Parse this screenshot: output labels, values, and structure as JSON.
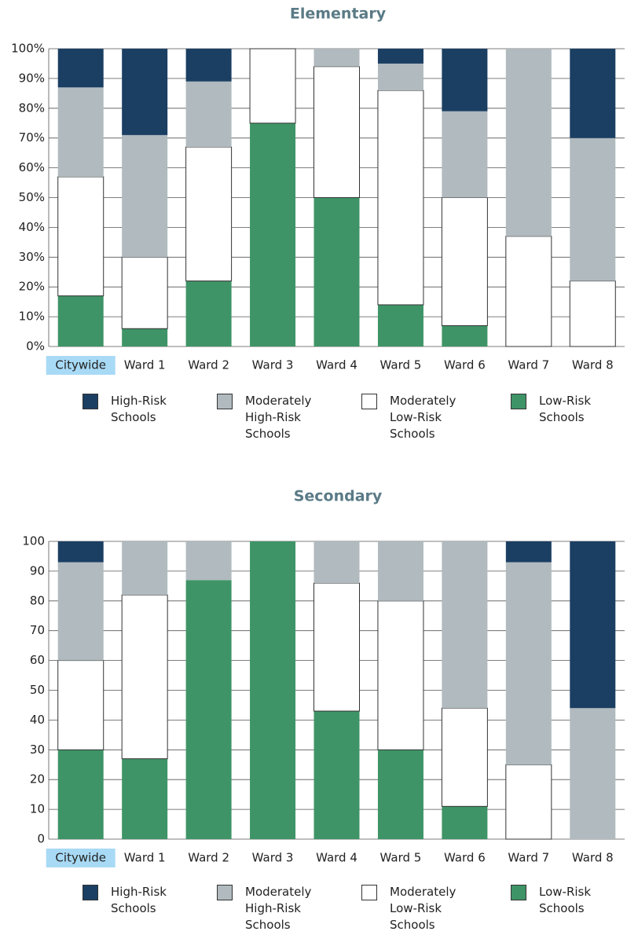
{
  "chart_data": [
    {
      "type": "bar",
      "stacked": true,
      "title": "Elementary",
      "categories": [
        "Citywide",
        "Ward 1",
        "Ward 2",
        "Ward 3",
        "Ward 4",
        "Ward 5",
        "Ward 6",
        "Ward 7",
        "Ward 8"
      ],
      "series": [
        {
          "name": "Low-Risk Schools",
          "color": "#3f9467",
          "values": [
            17,
            6,
            22,
            75,
            50,
            14,
            7,
            0,
            0
          ]
        },
        {
          "name": "Moderately Low-Risk Schools",
          "color": "#ffffff",
          "values": [
            40,
            24,
            45,
            25,
            44,
            72,
            43,
            37,
            22
          ]
        },
        {
          "name": "Moderately High-Risk Schools",
          "color": "#b0babf",
          "values": [
            30,
            41,
            22,
            0,
            6,
            9,
            29,
            63,
            48
          ]
        },
        {
          "name": "High-Risk Schools",
          "color": "#1b3f63",
          "values": [
            13,
            29,
            11,
            0,
            0,
            5,
            21,
            0,
            30
          ]
        }
      ],
      "ylim": [
        0,
        100
      ],
      "yticks": [
        {
          "value": 0,
          "label": "0%"
        },
        {
          "value": 10,
          "label": "10%"
        },
        {
          "value": 20,
          "label": "20%"
        },
        {
          "value": 30,
          "label": "30%"
        },
        {
          "value": 40,
          "label": "40%"
        },
        {
          "value": 50,
          "label": "50%"
        },
        {
          "value": 60,
          "label": "60%"
        },
        {
          "value": 70,
          "label": "70%"
        },
        {
          "value": 80,
          "label": "80%"
        },
        {
          "value": 90,
          "label": "90%"
        },
        {
          "value": 100,
          "label": "100%"
        }
      ],
      "grid": true
    },
    {
      "type": "bar",
      "stacked": true,
      "title": "Secondary",
      "categories": [
        "Citywide",
        "Ward 1",
        "Ward 2",
        "Ward 3",
        "Ward 4",
        "Ward 5",
        "Ward 6",
        "Ward 7",
        "Ward 8"
      ],
      "series": [
        {
          "name": "Low-Risk Schools",
          "color": "#3f9467",
          "values": [
            30,
            27,
            87,
            100,
            43,
            30,
            11,
            0,
            0
          ]
        },
        {
          "name": "Moderately Low-Risk Schools",
          "color": "#ffffff",
          "values": [
            30,
            55,
            0,
            0,
            43,
            50,
            33,
            25,
            0
          ]
        },
        {
          "name": "Moderately High-Risk Schools",
          "color": "#b0babf",
          "values": [
            33,
            18,
            13,
            0,
            14,
            20,
            56,
            68,
            44
          ]
        },
        {
          "name": "High-Risk Schools",
          "color": "#1b3f63",
          "values": [
            7,
            0,
            0,
            0,
            0,
            0,
            0,
            7,
            56
          ]
        }
      ],
      "ylim": [
        0,
        100
      ],
      "yticks": [
        0,
        10,
        20,
        30,
        40,
        50,
        60,
        70,
        80,
        90,
        100
      ],
      "grid": true
    }
  ]
}
